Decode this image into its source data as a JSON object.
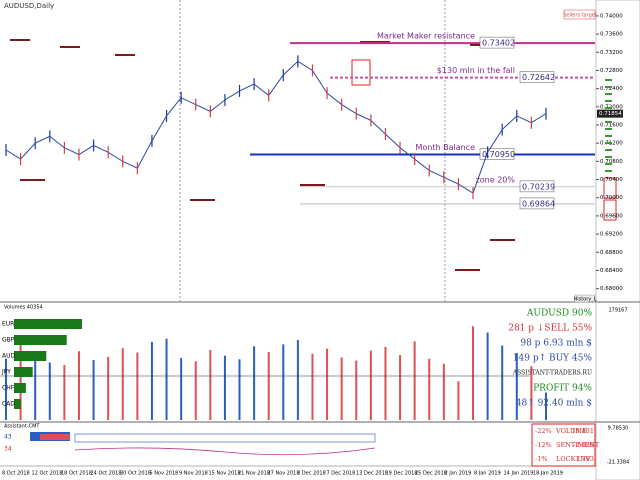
{
  "price_chart": {
    "title": "AUDUSD,Daily",
    "corner_label": "Sellers target",
    "history_label": "History_L",
    "ylim": [
      0.6775,
      0.7435
    ],
    "yticks": [
      {
        "value": 0.68,
        "label": "0.68000"
      },
      {
        "value": 0.684,
        "label": "0.68400"
      },
      {
        "value": 0.688,
        "label": "0.68800"
      },
      {
        "value": 0.692,
        "label": "0.69200"
      },
      {
        "value": 0.696,
        "label": "0.69600"
      },
      {
        "value": 0.7,
        "label": "0.70000"
      },
      {
        "value": 0.704,
        "label": "0.70400"
      },
      {
        "value": 0.708,
        "label": "0.70800"
      },
      {
        "value": 0.712,
        "label": "0.71200"
      },
      {
        "value": 0.716,
        "label": "0.71600"
      },
      {
        "value": 0.72,
        "label": "0.72000"
      },
      {
        "value": 0.724,
        "label": "0.72400"
      },
      {
        "value": 0.728,
        "label": "0.72800"
      },
      {
        "value": 0.732,
        "label": "0.73200"
      },
      {
        "value": 0.736,
        "label": "0.73600"
      },
      {
        "value": 0.74,
        "label": "0.74000"
      }
    ],
    "current_price": {
      "value": 0.7185,
      "label": "0.71854"
    },
    "dates": [
      "8 Oct 2018",
      "12 Oct 2018",
      "18 Oct 2018",
      "24 Oct 2018",
      "30 Oct 2018",
      "5 Nov 2018",
      "9 Nov 2018",
      "15 Nov 2018",
      "21 Nov 2018",
      "27 Nov 2018",
      "3 Dec 2018",
      "7 Dec 2018",
      "13 Dec 2018",
      "19 Dec 2018",
      "25 Dec 2018",
      "2 Jan 2019",
      "8 Jan 2019",
      "14 Jan 2019",
      "18 Jan 2019"
    ],
    "closes": [
      0.7105,
      0.7085,
      0.712,
      0.7135,
      0.711,
      0.7095,
      0.7115,
      0.71,
      0.708,
      0.7065,
      0.7125,
      0.718,
      0.722,
      0.7205,
      0.719,
      0.7215,
      0.7235,
      0.725,
      0.7225,
      0.727,
      0.73,
      0.728,
      0.723,
      0.7205,
      0.7185,
      0.717,
      0.714,
      0.711,
      0.7085,
      0.706,
      0.7045,
      0.703,
      0.701,
      0.71,
      0.715,
      0.718,
      0.7165,
      0.7185
    ],
    "levels": [
      {
        "text": "Market Maker resistance",
        "value": 0.73402,
        "label": "0.73402",
        "color": "#c0308a"
      },
      {
        "text": "$130 mln in the fall",
        "value": 0.72642,
        "label": "0.72642",
        "color": "#d050a0"
      },
      {
        "text": "Month Balance",
        "value": 0.7095,
        "label": "0.70950",
        "color": "#1a2fc0"
      },
      {
        "text": "zone 20%",
        "value": 0.70239,
        "label": "0.70239",
        "color": "#9a8a9a"
      },
      {
        "value": 0.69864,
        "label": "0.69864",
        "color": "#9a8a9a"
      }
    ]
  },
  "volume_panel": {
    "title": "Volumes 40354",
    "ylim": [
      0,
      179167
    ],
    "top_label": "179167",
    "currencies": [
      {
        "name": "EUR",
        "strength": 80
      },
      {
        "name": "GBP",
        "strength": 62
      },
      {
        "name": "AUD",
        "strength": 38
      },
      {
        "name": "JPY",
        "strength": 22
      },
      {
        "name": "CHF",
        "strength": 14
      },
      {
        "name": "CAD",
        "strength": 8
      }
    ],
    "values": [
      98000,
      120000,
      105000,
      92000,
      88000,
      110000,
      96000,
      101000,
      115000,
      108000,
      125000,
      130000,
      99000,
      94000,
      112000,
      103000,
      97000,
      118000,
      109000,
      121000,
      128000,
      106000,
      114000,
      100000,
      95000,
      111000,
      117000,
      104000,
      126000,
      98000,
      90000,
      62000,
      150000,
      140000,
      119000,
      107000,
      86000,
      44000
    ],
    "info": [
      "AUDUSD 90%",
      "281 p ↓SELL 55%",
      "98 p   6.93 mln $",
      "149 p↑ BUY 45%",
      "ASSISTANT-TRADERS.RU",
      "PROFIT 94%",
      "48↑ 92.40 mln $"
    ]
  },
  "indicator_panel": {
    "title": "Assistant-CMT",
    "counts": [
      "43",
      "34"
    ],
    "top_label": "9.78530",
    "bottom_label": "-21.3384",
    "rows": [
      {
        "pct": "-22%",
        "name": "VOLUME",
        "value": "18.481"
      },
      {
        "pct": "-12%",
        "name": "SENTIMENT",
        "value": "-7.026"
      },
      {
        "pct": "-1%",
        "name": "LOCK INV",
        "value": "1.793"
      }
    ]
  }
}
